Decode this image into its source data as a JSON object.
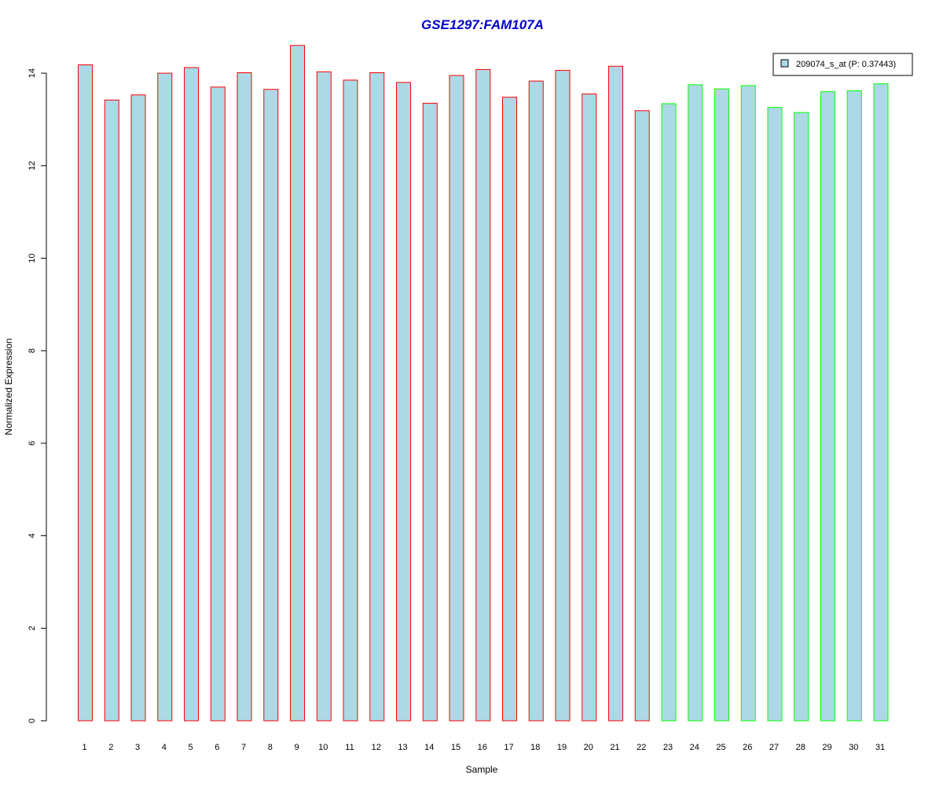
{
  "chart_data": {
    "type": "bar",
    "title": "GSE1297:FAM107A",
    "xlabel": "Sample",
    "ylabel": "Normalized Expression",
    "categories": [
      "1",
      "2",
      "3",
      "4",
      "5",
      "6",
      "7",
      "8",
      "9",
      "10",
      "11",
      "12",
      "13",
      "14",
      "15",
      "16",
      "17",
      "18",
      "19",
      "20",
      "21",
      "22",
      "23",
      "24",
      "25",
      "26",
      "27",
      "28",
      "29",
      "30",
      "31"
    ],
    "series": [
      {
        "name": "209074_s_at (P: 0.37443)",
        "values": [
          14.18,
          13.42,
          13.53,
          14.0,
          14.12,
          13.7,
          14.01,
          13.65,
          14.6,
          14.03,
          13.85,
          14.01,
          13.8,
          13.35,
          13.95,
          14.08,
          13.48,
          13.83,
          14.06,
          13.55,
          14.15,
          13.19,
          13.34,
          13.75,
          13.66,
          13.73,
          13.26,
          13.15,
          13.6,
          13.62,
          13.77
        ]
      }
    ],
    "groups": [
      1,
      1,
      1,
      1,
      1,
      1,
      1,
      1,
      1,
      1,
      1,
      1,
      1,
      1,
      1,
      1,
      1,
      1,
      1,
      1,
      1,
      1,
      2,
      2,
      2,
      2,
      2,
      2,
      2,
      2,
      2
    ],
    "yticks": [
      0,
      2,
      4,
      6,
      8,
      10,
      12,
      14
    ],
    "ylim": [
      0,
      14.6
    ],
    "legend": "top-right",
    "grid": false,
    "colors": {
      "bar_fill": "#add8e6",
      "group1_border": "#ff0000",
      "group2_border": "#00ff00",
      "title": "#0000cd"
    }
  }
}
